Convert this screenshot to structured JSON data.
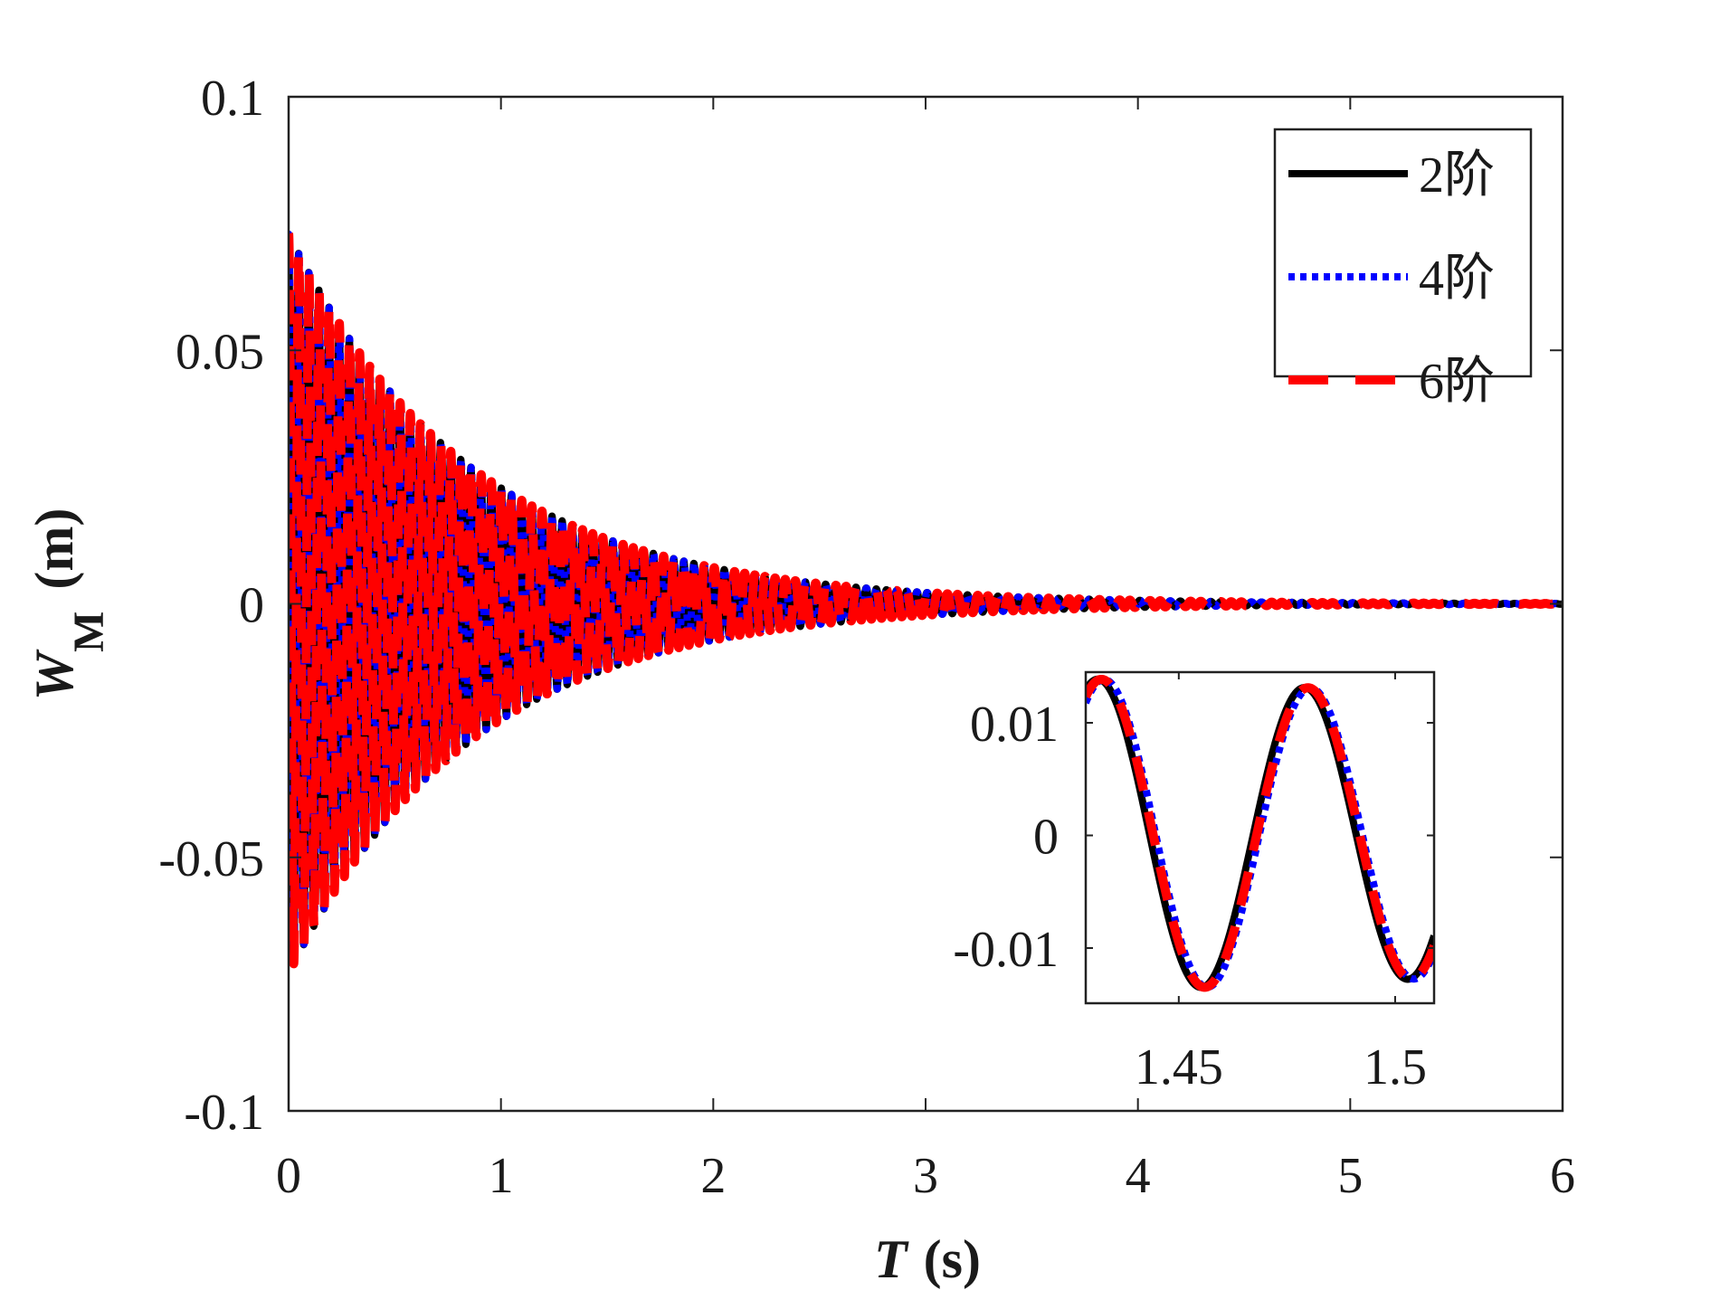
{
  "chart_data": {
    "type": "line",
    "xlabel": "T",
    "xlabel_unit": "(s)",
    "ylabel": "W",
    "ylabel_sub": "M",
    "ylabel_unit": "(m)",
    "xlim": [
      0,
      6
    ],
    "ylim": [
      -0.1,
      0.1
    ],
    "xticks": [
      "0",
      "1",
      "2",
      "3",
      "4",
      "5",
      "6"
    ],
    "yticks": [
      "-0.1",
      "-0.05",
      "0",
      "0.05",
      "0.1"
    ],
    "xtick_values": [
      0,
      1,
      2,
      3,
      4,
      5,
      6
    ],
    "ytick_values": [
      -0.1,
      -0.05,
      0,
      0.05,
      0.1
    ],
    "legend_position": "top-right",
    "model": "w(t) = A * exp(-c t) * cos(2*pi*f*(t - shift))",
    "series": [
      {
        "name": "2阶",
        "color": "#000000",
        "style": "solid",
        "A": 0.073,
        "c": 1.16,
        "f": 20.95,
        "shift": -0.0006
      },
      {
        "name": "4阶",
        "color": "#0000ff",
        "style": "dotted",
        "A": 0.073,
        "c": 1.16,
        "f": 20.95,
        "shift": 0.0008
      },
      {
        "name": "6阶",
        "color": "#ff0000",
        "style": "dashed",
        "A": 0.073,
        "c": 1.16,
        "f": 20.95,
        "shift": 0.0002
      }
    ],
    "inset": {
      "xlim": [
        1.4285,
        1.509
      ],
      "ylim": [
        -0.0149,
        0.0145
      ],
      "xticks": [
        "1.45",
        "1.5"
      ],
      "xtick_values": [
        1.45,
        1.5
      ],
      "yticks": [
        "-0.01",
        "0",
        "0.01"
      ],
      "ytick_values": [
        -0.01,
        0,
        0.01
      ]
    }
  }
}
